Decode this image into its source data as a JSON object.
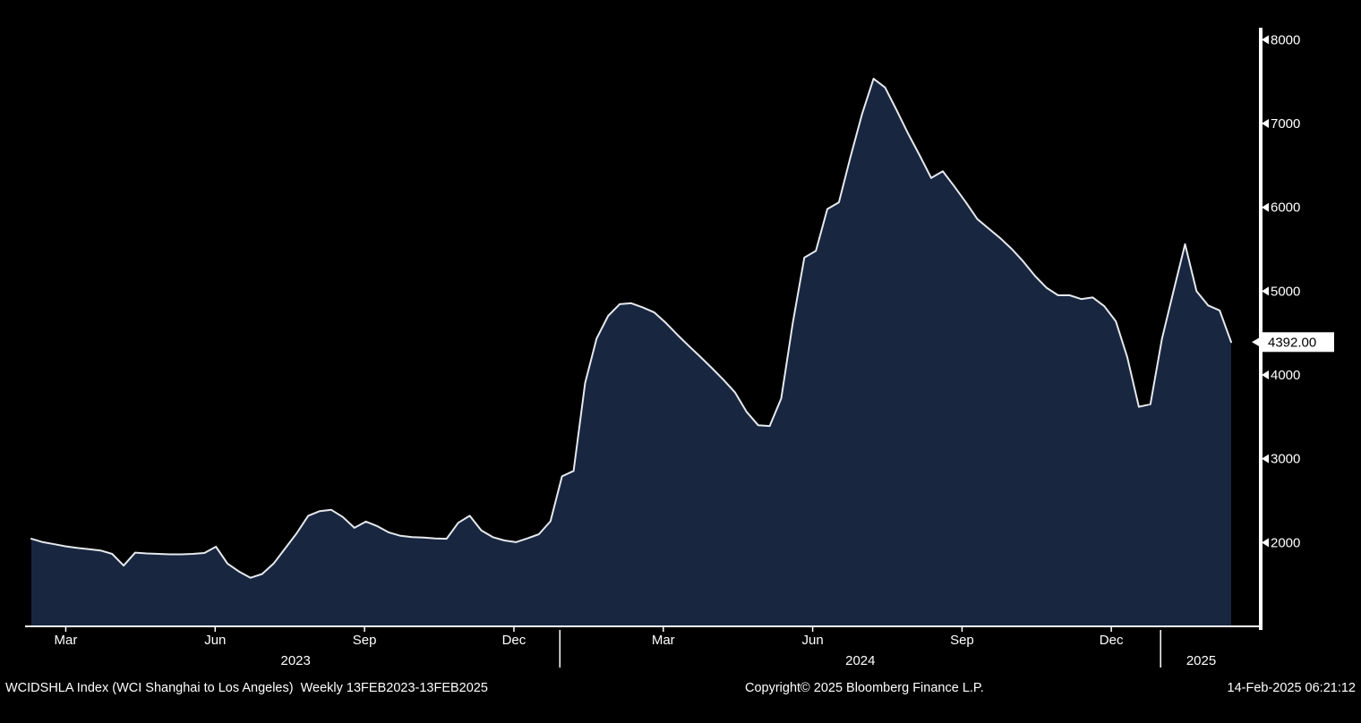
{
  "chart_data": {
    "type": "area",
    "title": "WCIDSHLA Index (WCI Shanghai to Los Angeles)",
    "frequency": "Weekly",
    "range": "13FEB2023-13FEB2025",
    "last_price": 4392.0,
    "last_price_label": "4392.00",
    "ylim": [
      1000,
      8100
    ],
    "yticks": [
      2000,
      3000,
      4000,
      5000,
      6000,
      7000,
      8000
    ],
    "x_ticks": [
      {
        "label": "Mar",
        "f": 0.0287
      },
      {
        "label": "Jun",
        "f": 0.1532
      },
      {
        "label": "Sep",
        "f": 0.2777
      },
      {
        "label": "Dec",
        "f": 0.4022
      },
      {
        "label": "Mar",
        "f": 0.5267
      },
      {
        "label": "Jun",
        "f": 0.6512
      },
      {
        "label": "Sep",
        "f": 0.7757
      },
      {
        "label": "Dec",
        "f": 0.9001
      }
    ],
    "year_labels": [
      {
        "label": "2023",
        "f": 0.2203
      },
      {
        "label": "2024",
        "f": 0.6909
      },
      {
        "label": "2025",
        "f": 0.975
      }
    ],
    "year_separators_f": [
      0.4405,
      0.9412
    ],
    "x_start": "13FEB2023",
    "x_end": "13FEB2025",
    "interval_days": 7,
    "values": [
      2045,
      2005,
      1980,
      1955,
      1935,
      1920,
      1905,
      1865,
      1725,
      1880,
      1870,
      1865,
      1860,
      1860,
      1865,
      1875,
      1950,
      1750,
      1655,
      1580,
      1625,
      1750,
      1930,
      2110,
      2320,
      2375,
      2390,
      2305,
      2175,
      2250,
      2195,
      2120,
      2080,
      2065,
      2060,
      2050,
      2045,
      2235,
      2320,
      2145,
      2065,
      2025,
      2005,
      2050,
      2100,
      2255,
      2790,
      2855,
      3905,
      4435,
      4705,
      4845,
      4855,
      4805,
      4745,
      4620,
      4480,
      4345,
      4215,
      4080,
      3940,
      3790,
      3560,
      3400,
      3390,
      3720,
      4620,
      5400,
      5480,
      5980,
      6060,
      6600,
      7110,
      7535,
      7430,
      7160,
      6880,
      6620,
      6350,
      6430,
      6250,
      6060,
      5860,
      5745,
      5630,
      5500,
      5350,
      5180,
      5040,
      4950,
      4950,
      4905,
      4925,
      4820,
      4640,
      4210,
      3620,
      3650,
      4430,
      5000,
      5560,
      5000,
      4830,
      4770,
      4392
    ],
    "colors": {
      "background": "#000000",
      "fill": "#182640",
      "line": "#e6e9ed",
      "axis": "#ffffff",
      "text": "#ffffff",
      "price_box_bg": "#ffffff",
      "price_box_text": "#000000"
    },
    "legend_position": "none",
    "grid": false
  },
  "footer": {
    "left": "WCIDSHLA Index (WCI Shanghai to Los Angeles)  Weekly 13FEB2023-13FEB2025",
    "center": "Copyright© 2025 Bloomberg Finance L.P.",
    "right": "14-Feb-2025 06:21:12"
  }
}
